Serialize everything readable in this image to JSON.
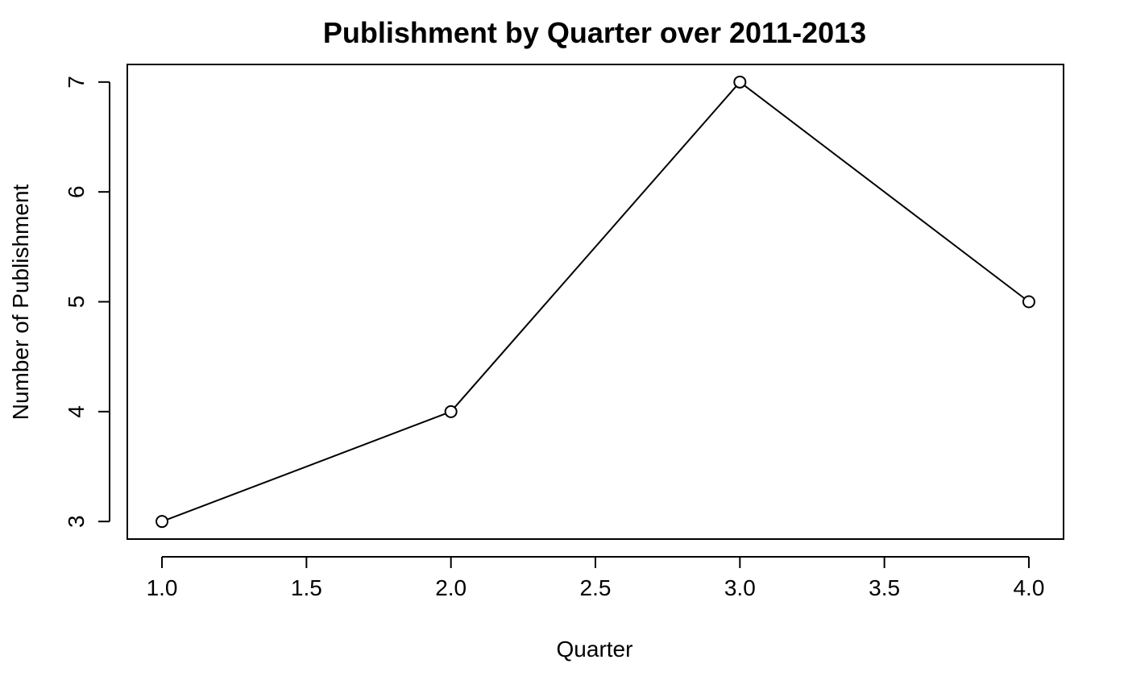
{
  "chart_data": {
    "type": "line",
    "title": "Publishment by Quarter over 2011-2013",
    "xlabel": "Quarter",
    "ylabel": "Number of Publishment",
    "x": [
      1,
      2,
      3,
      4
    ],
    "series": [
      {
        "values": [
          3,
          4,
          7,
          5
        ]
      }
    ],
    "xlim": [
      0.88,
      4.12
    ],
    "ylim": [
      2.84,
      7.16
    ],
    "x_ticks": [
      1.0,
      1.5,
      2.0,
      2.5,
      3.0,
      3.5,
      4.0
    ],
    "x_tick_labels": [
      "1.0",
      "1.5",
      "2.0",
      "2.5",
      "3.0",
      "3.5",
      "4.0"
    ],
    "y_ticks": [
      3,
      4,
      5,
      6,
      7
    ],
    "y_tick_labels": [
      "3",
      "4",
      "5",
      "6",
      "7"
    ],
    "grid": false,
    "legend": "none",
    "marker": "open-circle",
    "line_color": "#000000"
  }
}
